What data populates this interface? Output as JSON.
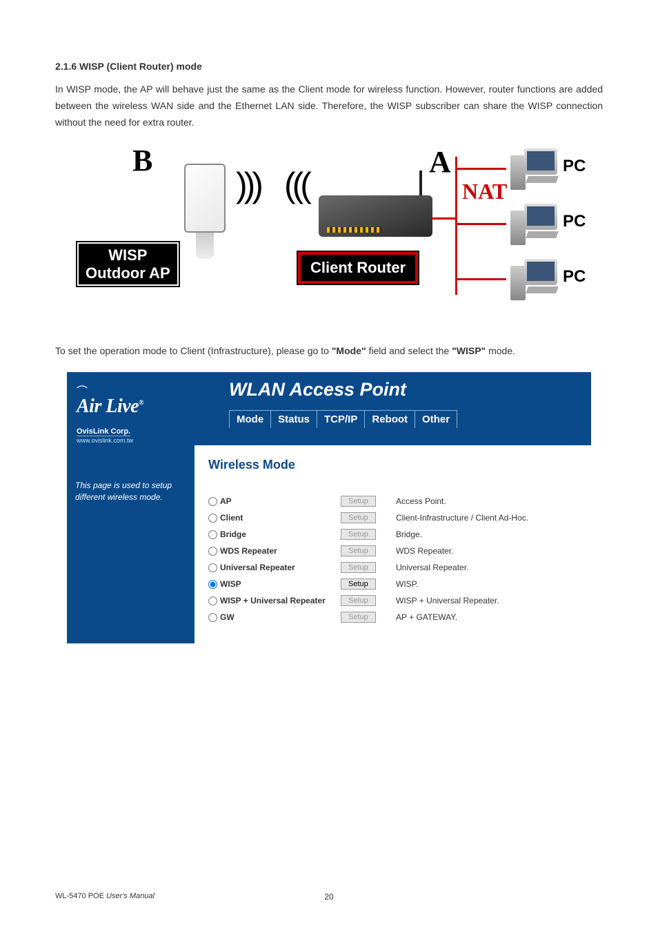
{
  "section": {
    "number": "2.1.6",
    "title": "WISP (Client Router) mode",
    "body": "In WISP mode, the AP will behave just the same as the Client mode for wireless function. However, router functions are added between the wireless WAN side and the Ethernet LAN side. Therefore, the WISP subscriber can share the WISP connection without the need for extra router.",
    "instruction_pre": "To set the operation mode to Client (Infrastructure), please go to ",
    "instruction_mode": "\"Mode\"",
    "instruction_mid": " field and select the ",
    "instruction_wisp": "\"WISP\"",
    "instruction_post": " mode."
  },
  "diagram": {
    "letter_a": "A",
    "letter_b": "B",
    "wisp_line1": "WISP",
    "wisp_line2": "Outdoor AP",
    "client_router": "Client Router",
    "nat": "NAT",
    "pc": "PC",
    "signal_out": ")))",
    "signal_in": "(((",
    "wave": "≈",
    "colors": {
      "red": "#c00",
      "black": "#000",
      "header_blue": "#0a4a8a"
    }
  },
  "ui": {
    "brand_arc": "⌒",
    "brand": "Air Live",
    "brand_r": "®",
    "corp": "OvisLink Corp.",
    "url": "www.ovislink.com.tw",
    "title": "WLAN Access Point",
    "tabs": [
      "Mode",
      "Status",
      "TCP/IP",
      "Reboot",
      "Other"
    ],
    "side_text": "This page is used to setup different wireless mode.",
    "panel_title": "Wireless Mode",
    "setup_label": "Setup",
    "modes": [
      {
        "label": "AP",
        "desc": "Access Point.",
        "checked": false,
        "enabled": false
      },
      {
        "label": "Client",
        "desc": "Client-Infrastructure / Client Ad-Hoc.",
        "checked": false,
        "enabled": false
      },
      {
        "label": "Bridge",
        "desc": "Bridge.",
        "checked": false,
        "enabled": false
      },
      {
        "label": "WDS Repeater",
        "desc": "WDS Repeater.",
        "checked": false,
        "enabled": false
      },
      {
        "label": "Universal Repeater",
        "desc": "Universal Repeater.",
        "checked": false,
        "enabled": false
      },
      {
        "label": "WISP",
        "desc": "WISP.",
        "checked": true,
        "enabled": true
      },
      {
        "label": "WISP + Universal Repeater",
        "desc": "WISP + Universal Repeater.",
        "checked": false,
        "enabled": false
      },
      {
        "label": "GW",
        "desc": "AP + GATEWAY.",
        "checked": false,
        "enabled": false
      }
    ]
  },
  "footer": {
    "product": "WL-5470 POE",
    "manual": " User's Manual",
    "page": "20"
  }
}
